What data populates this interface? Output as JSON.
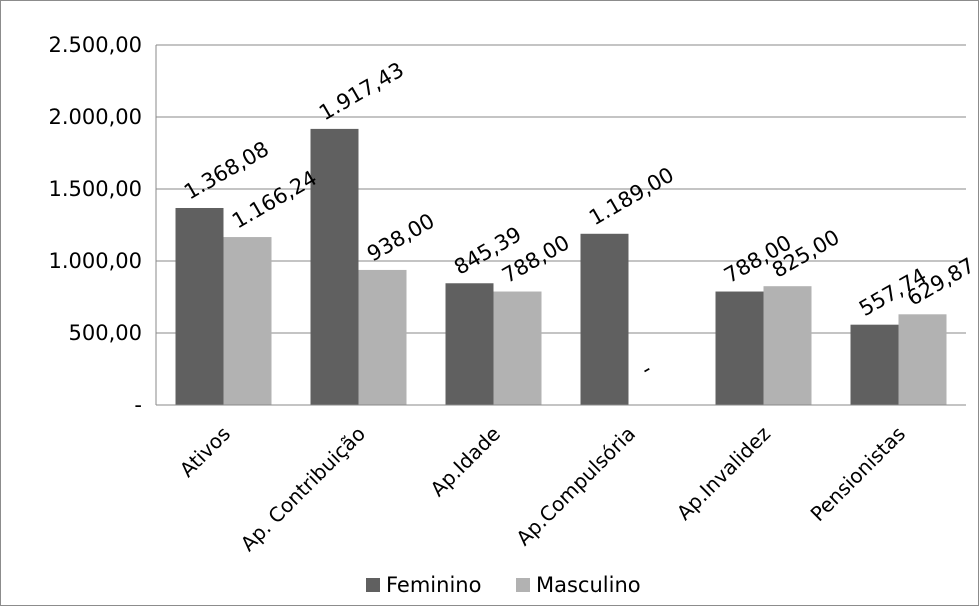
{
  "chart_data": {
    "type": "bar",
    "title": "",
    "xlabel": "",
    "ylabel": "",
    "categories": [
      "Ativos",
      "Ap. Contribuição",
      "Ap.Idade",
      "Ap.Compulsória",
      "Ap.Invalidez",
      "Pensionistas"
    ],
    "series": [
      {
        "name": "Feminino",
        "color": "#606060",
        "values": [
          1368.08,
          1917.43,
          845.39,
          1189.0,
          788.0,
          557.74
        ],
        "labels": [
          "1.368,08",
          "1.917,43",
          "845,39",
          "1.189,00",
          "788,00",
          "557,74"
        ]
      },
      {
        "name": "Masculino",
        "color": "#b2b2b2",
        "values": [
          1166.24,
          938.0,
          788.0,
          0,
          825.0,
          629.87
        ],
        "labels": [
          "1.166,24",
          "938,00",
          "788,00",
          "-",
          "825,00",
          "629,87"
        ]
      }
    ],
    "ylim": [
      0,
      2500
    ],
    "yticks": [
      0,
      500,
      1000,
      1500,
      2000,
      2500
    ],
    "ytick_labels": [
      "-",
      "500,00",
      "1.000,00",
      "1.500,00",
      "2.000,00",
      "2.500,00"
    ],
    "grid": true,
    "legend": "bottom"
  }
}
